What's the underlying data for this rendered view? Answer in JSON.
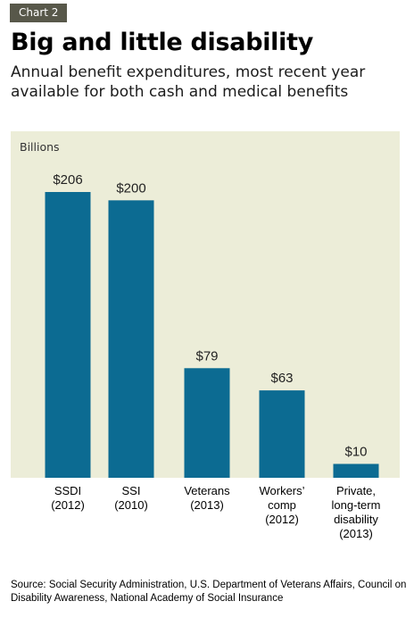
{
  "badge": "Chart 2",
  "title": "Big and little disability",
  "subtitle": "Annual benefit expenditures, most recent year available for both cash and medical benefits",
  "source": "Source: Social Security Administration, U.S. Department of Veterans Affairs, Council on Disability Awareness, National Academy of Social Insurance",
  "chart_data": {
    "type": "bar",
    "ylabel": "Billions",
    "categories": [
      "SSDI\n(2012)",
      "SSI\n(2010)",
      "Veterans\n(2013)",
      "Workers’\ncomp\n(2012)",
      "Private,\nlong-term\ndisability\n(2013)"
    ],
    "values": [
      206,
      200,
      79,
      63,
      10
    ],
    "data_labels": [
      "$206",
      "$200",
      "$79",
      "$63",
      "$10"
    ],
    "ylim": [
      0,
      220
    ],
    "grid": false,
    "colors": {
      "bar": "#0c6b92",
      "background": "#ecedd8"
    }
  }
}
